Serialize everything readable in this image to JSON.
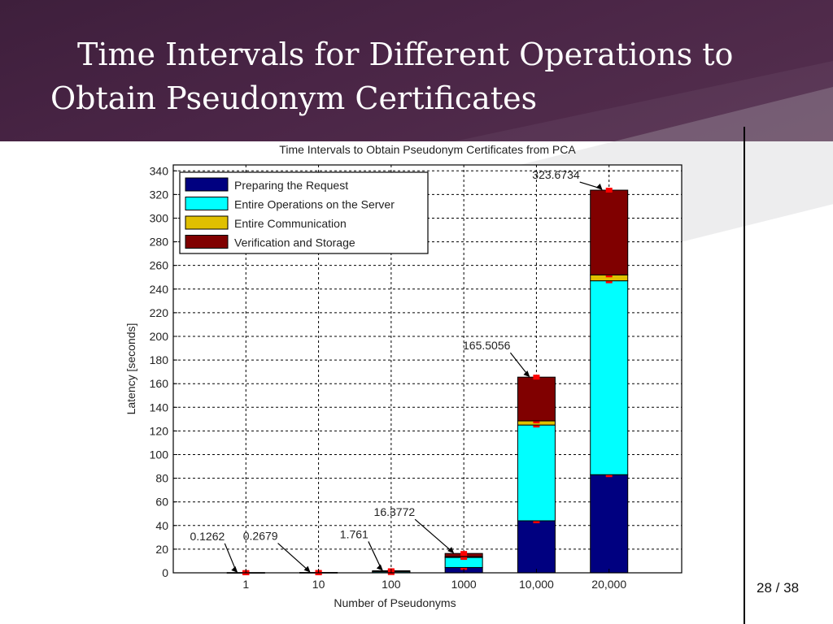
{
  "slide": {
    "title_line1": "Time Intervals for Different Operations to",
    "title_line2": "Obtain Pseudonym Certificates",
    "page_number": "28",
    "page_total": "38"
  },
  "chart_data": {
    "type": "bar",
    "stacked": true,
    "title": "Time Intervals to Obtain Pseudonym Certificates from PCA",
    "xlabel": "Number of Pseudonyms",
    "ylabel": "Latency [seconds]",
    "ylim": [
      0,
      345
    ],
    "yticks": [
      0,
      20,
      40,
      60,
      80,
      100,
      120,
      140,
      160,
      180,
      200,
      220,
      240,
      260,
      280,
      300,
      320,
      340
    ],
    "grid": true,
    "legend_position": "top-left",
    "categories": [
      "1",
      "10",
      "100",
      "1000",
      "10,000",
      "20,000"
    ],
    "series": [
      {
        "name": "Preparing the Request",
        "color": "#000080",
        "values": [
          0.01,
          0.03,
          0.2,
          4.5,
          44,
          83
        ]
      },
      {
        "name": "Entire Operations on the Server",
        "color": "#00ffff",
        "values": [
          0.06,
          0.12,
          0.9,
          8.5,
          81,
          164
        ]
      },
      {
        "name": "Entire Communication",
        "color": "#e0c000",
        "values": [
          0.01,
          0.02,
          0.1,
          0.7,
          3.5,
          5
        ]
      },
      {
        "name": "Verification and Storage",
        "color": "#800000",
        "values": [
          0.0462,
          0.0979,
          0.561,
          2.6772,
          37.0056,
          71.6734
        ]
      }
    ],
    "totals": [
      0.1262,
      0.2679,
      1.761,
      16.3772,
      165.5056,
      323.6734
    ],
    "annotations": [
      "0.1262",
      "0.2679",
      "1.761",
      "16.3772",
      "165.5056",
      "323.6734"
    ],
    "marker_color": "#ff0000"
  }
}
